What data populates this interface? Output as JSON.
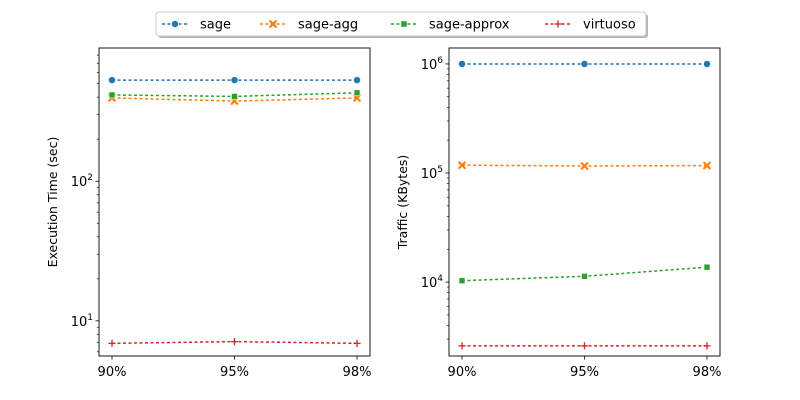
{
  "legend": {
    "placement": "top-center",
    "entries": [
      {
        "label": "sage",
        "color": "#1f77b4",
        "marker": "circle"
      },
      {
        "label": "sage-agg",
        "color": "#ff7f0e",
        "marker": "x"
      },
      {
        "label": "sage-approx",
        "color": "#2ca02c",
        "marker": "square"
      },
      {
        "label": "virtuoso",
        "color": "#d62728",
        "marker": "plus"
      }
    ]
  },
  "chart_data": [
    {
      "type": "line",
      "ylabel": "Execution Time (sec)",
      "xlabel": "",
      "yscale": "log",
      "ylim": [
        5.6,
        900
      ],
      "x": [
        "90%",
        "95%",
        "98%"
      ],
      "yticks": [
        {
          "value": 10,
          "label": "10^1"
        },
        {
          "value": 100,
          "label": "10^2"
        }
      ],
      "grid": false,
      "series": [
        {
          "name": "sage",
          "values": [
            530,
            530,
            530
          ]
        },
        {
          "name": "sage-agg",
          "values": [
            395,
            375,
            395
          ]
        },
        {
          "name": "sage-approx",
          "values": [
            415,
            405,
            430
          ]
        },
        {
          "name": "virtuoso",
          "values": [
            6.9,
            7.1,
            6.9
          ]
        }
      ]
    },
    {
      "type": "line",
      "ylabel": "Traffic (KBytes)",
      "xlabel": "",
      "yscale": "log",
      "ylim": [
        2100,
        1400000
      ],
      "x": [
        "90%",
        "95%",
        "98%"
      ],
      "yticks": [
        {
          "value": 10000,
          "label": "10^4"
        },
        {
          "value": 100000,
          "label": "10^5"
        },
        {
          "value": 1000000,
          "label": "10^6"
        }
      ],
      "grid": false,
      "series": [
        {
          "name": "sage",
          "values": [
            1000000,
            1000000,
            1000000
          ]
        },
        {
          "name": "sage-agg",
          "values": [
            118000,
            116000,
            117000
          ]
        },
        {
          "name": "sage-approx",
          "values": [
            10300,
            11300,
            13700
          ]
        },
        {
          "name": "virtuoso",
          "values": [
            2600,
            2600,
            2600
          ]
        }
      ]
    }
  ]
}
